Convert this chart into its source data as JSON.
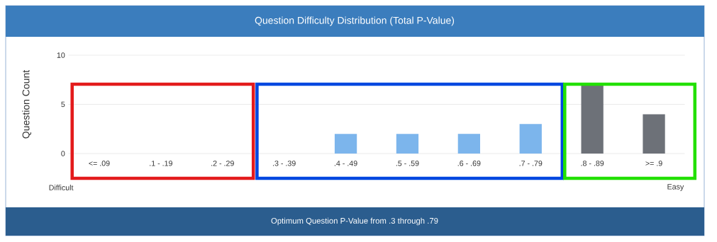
{
  "chart_data": {
    "type": "bar",
    "title": "Question Difficulty Distribution (Total P-Value)",
    "ylabel": "Question Count",
    "categories": [
      "<= .09",
      ".1 - .19",
      ".2 - .29",
      ".3 - .39",
      ".4 - .49",
      ".5 - .59",
      ".6 - .69",
      ".7 - .79",
      ".8 - .89",
      ">= .9"
    ],
    "values": [
      0,
      0,
      0,
      0,
      2,
      2,
      2,
      3,
      7,
      4
    ],
    "colors": [
      "#7cb5ec",
      "#7cb5ec",
      "#7cb5ec",
      "#7cb5ec",
      "#7cb5ec",
      "#7cb5ec",
      "#7cb5ec",
      "#7cb5ec",
      "#6d7178",
      "#6d7178"
    ],
    "ylim": [
      0,
      10
    ],
    "yticks": [
      0,
      5,
      10
    ],
    "grid": "y",
    "annotations": [
      "Difficult",
      "Easy",
      "Optimum Question P-Value from .3 through .79"
    ]
  }
}
